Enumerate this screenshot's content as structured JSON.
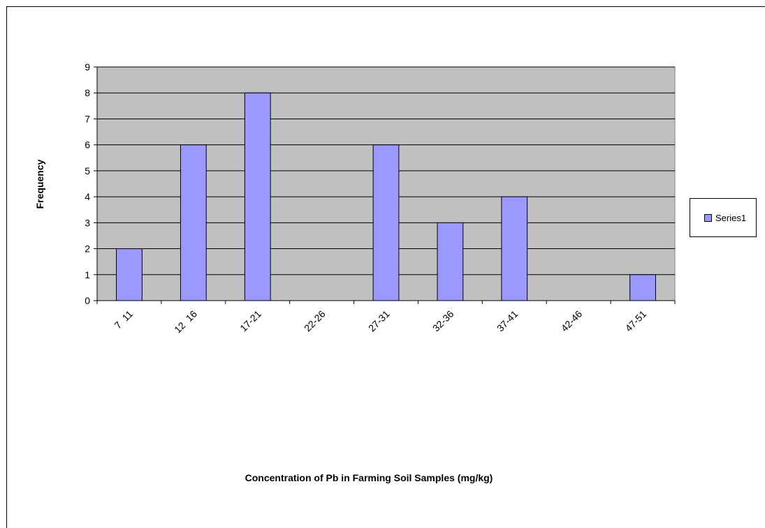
{
  "chart_data": {
    "type": "bar",
    "categories": [
      "7  11",
      "12  16",
      "17-21",
      "22-26",
      "27-31",
      "32-36",
      "37-41",
      "42-46",
      "47-51"
    ],
    "series": [
      {
        "name": "Series1",
        "values": [
          2,
          6,
          8,
          0,
          6,
          3,
          4,
          0,
          1
        ],
        "color": "#9999ff"
      }
    ],
    "xlabel": "Concentration of Pb in Farming Soil Samples (mg/kg)",
    "ylabel": "Frequency",
    "ylim": [
      0,
      9
    ],
    "yticks": [
      0,
      1,
      2,
      3,
      4,
      5,
      6,
      7,
      8,
      9
    ],
    "grid": true,
    "plot_background": "#c0c0c0",
    "legend_position": "right"
  }
}
